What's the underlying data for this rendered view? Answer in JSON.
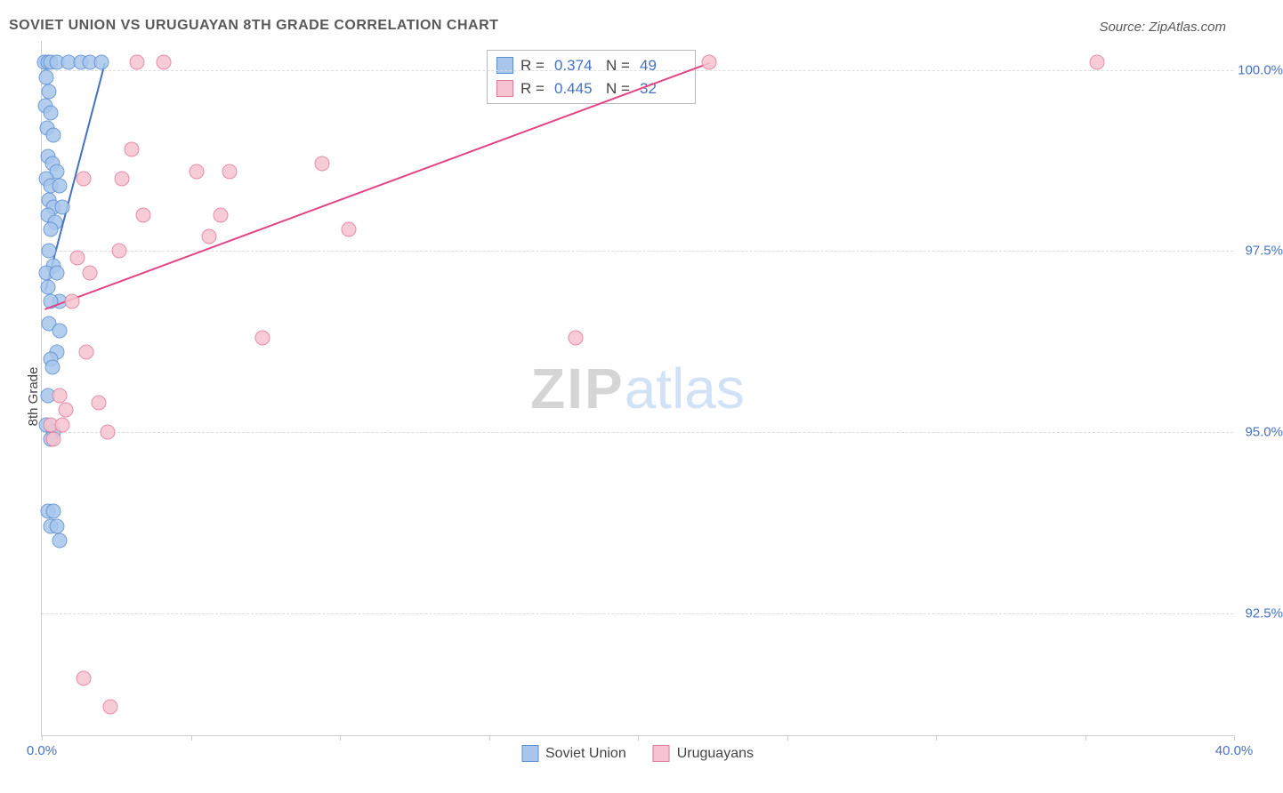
{
  "title": "SOVIET UNION VS URUGUAYAN 8TH GRADE CORRELATION CHART",
  "source": "Source: ZipAtlas.com",
  "ylabel": "8th Grade",
  "watermark": {
    "zip": "ZIP",
    "atlas": "atlas"
  },
  "plot": {
    "xlim": [
      0,
      40
    ],
    "ylim": [
      90.8,
      100.4
    ],
    "x_tick_start": 0,
    "x_tick_step": 5,
    "x_tick_count": 9,
    "x_labels": [
      {
        "v": 0,
        "t": "0.0%"
      },
      {
        "v": 40,
        "t": "40.0%"
      }
    ],
    "y_ticks": [
      {
        "v": 92.5,
        "t": "92.5%"
      },
      {
        "v": 95.0,
        "t": "95.0%"
      },
      {
        "v": 97.5,
        "t": "97.5%"
      },
      {
        "v": 100.0,
        "t": "100.0%"
      }
    ],
    "grid_color": "#dcdcdc",
    "axis_color": "#cccccc",
    "background_color": "#ffffff"
  },
  "series": [
    {
      "name": "Soviet Union",
      "marker_size": 17,
      "fill": "#a8c6ec",
      "stroke": "#5b8ed1",
      "line_color": "#4472c4",
      "r": "0.374",
      "n": "49",
      "trend": {
        "x1": 0.1,
        "y1": 96.95,
        "x2": 2.1,
        "y2": 100.1
      },
      "points": [
        [
          0.1,
          100.1
        ],
        [
          0.2,
          100.1
        ],
        [
          0.3,
          100.1
        ],
        [
          0.5,
          100.1
        ],
        [
          0.9,
          100.1
        ],
        [
          1.3,
          100.1
        ],
        [
          1.6,
          100.1
        ],
        [
          2.0,
          100.1
        ],
        [
          0.15,
          99.9
        ],
        [
          0.25,
          99.7
        ],
        [
          0.12,
          99.5
        ],
        [
          0.3,
          99.4
        ],
        [
          0.18,
          99.2
        ],
        [
          0.4,
          99.1
        ],
        [
          0.2,
          98.8
        ],
        [
          0.35,
          98.7
        ],
        [
          0.5,
          98.6
        ],
        [
          0.15,
          98.5
        ],
        [
          0.3,
          98.4
        ],
        [
          0.6,
          98.4
        ],
        [
          0.25,
          98.2
        ],
        [
          0.4,
          98.1
        ],
        [
          0.7,
          98.1
        ],
        [
          0.2,
          98.0
        ],
        [
          0.45,
          97.9
        ],
        [
          0.3,
          97.8
        ],
        [
          0.25,
          97.5
        ],
        [
          0.4,
          97.3
        ],
        [
          0.15,
          97.2
        ],
        [
          0.5,
          97.2
        ],
        [
          0.2,
          97.0
        ],
        [
          0.6,
          96.8
        ],
        [
          0.3,
          96.8
        ],
        [
          0.25,
          96.5
        ],
        [
          0.6,
          96.4
        ],
        [
          0.5,
          96.1
        ],
        [
          0.3,
          96.0
        ],
        [
          0.35,
          95.9
        ],
        [
          0.2,
          95.5
        ],
        [
          0.15,
          95.1
        ],
        [
          0.4,
          95.0
        ],
        [
          0.3,
          94.9
        ],
        [
          0.2,
          93.9
        ],
        [
          0.4,
          93.9
        ],
        [
          0.3,
          93.7
        ],
        [
          0.5,
          93.7
        ],
        [
          0.6,
          93.5
        ]
      ]
    },
    {
      "name": "Uruguayans",
      "marker_size": 17,
      "fill": "#f6c4d0",
      "stroke": "#e27a9a",
      "line_color": "#e24585",
      "r": "0.445",
      "n": "32",
      "trend": {
        "x1": 0.1,
        "y1": 96.7,
        "x2": 22.4,
        "y2": 100.1
      },
      "points": [
        [
          3.2,
          100.1
        ],
        [
          4.1,
          100.1
        ],
        [
          22.4,
          100.1
        ],
        [
          35.4,
          100.1
        ],
        [
          3.0,
          98.9
        ],
        [
          1.4,
          98.5
        ],
        [
          2.7,
          98.5
        ],
        [
          5.2,
          98.6
        ],
        [
          6.3,
          98.6
        ],
        [
          9.4,
          98.7
        ],
        [
          3.4,
          98.0
        ],
        [
          6.0,
          98.0
        ],
        [
          5.6,
          97.7
        ],
        [
          10.3,
          97.8
        ],
        [
          2.6,
          97.5
        ],
        [
          1.2,
          97.4
        ],
        [
          1.6,
          97.2
        ],
        [
          1.0,
          96.8
        ],
        [
          7.4,
          96.3
        ],
        [
          17.9,
          96.3
        ],
        [
          1.5,
          96.1
        ],
        [
          1.9,
          95.4
        ],
        [
          0.6,
          95.5
        ],
        [
          0.8,
          95.3
        ],
        [
          0.3,
          95.1
        ],
        [
          0.7,
          95.1
        ],
        [
          2.2,
          95.0
        ],
        [
          0.4,
          94.9
        ],
        [
          1.4,
          91.6
        ],
        [
          2.3,
          91.2
        ]
      ]
    }
  ],
  "legend_top": {
    "r_label": "R =",
    "n_label": "N ="
  },
  "legend_bottom": {}
}
